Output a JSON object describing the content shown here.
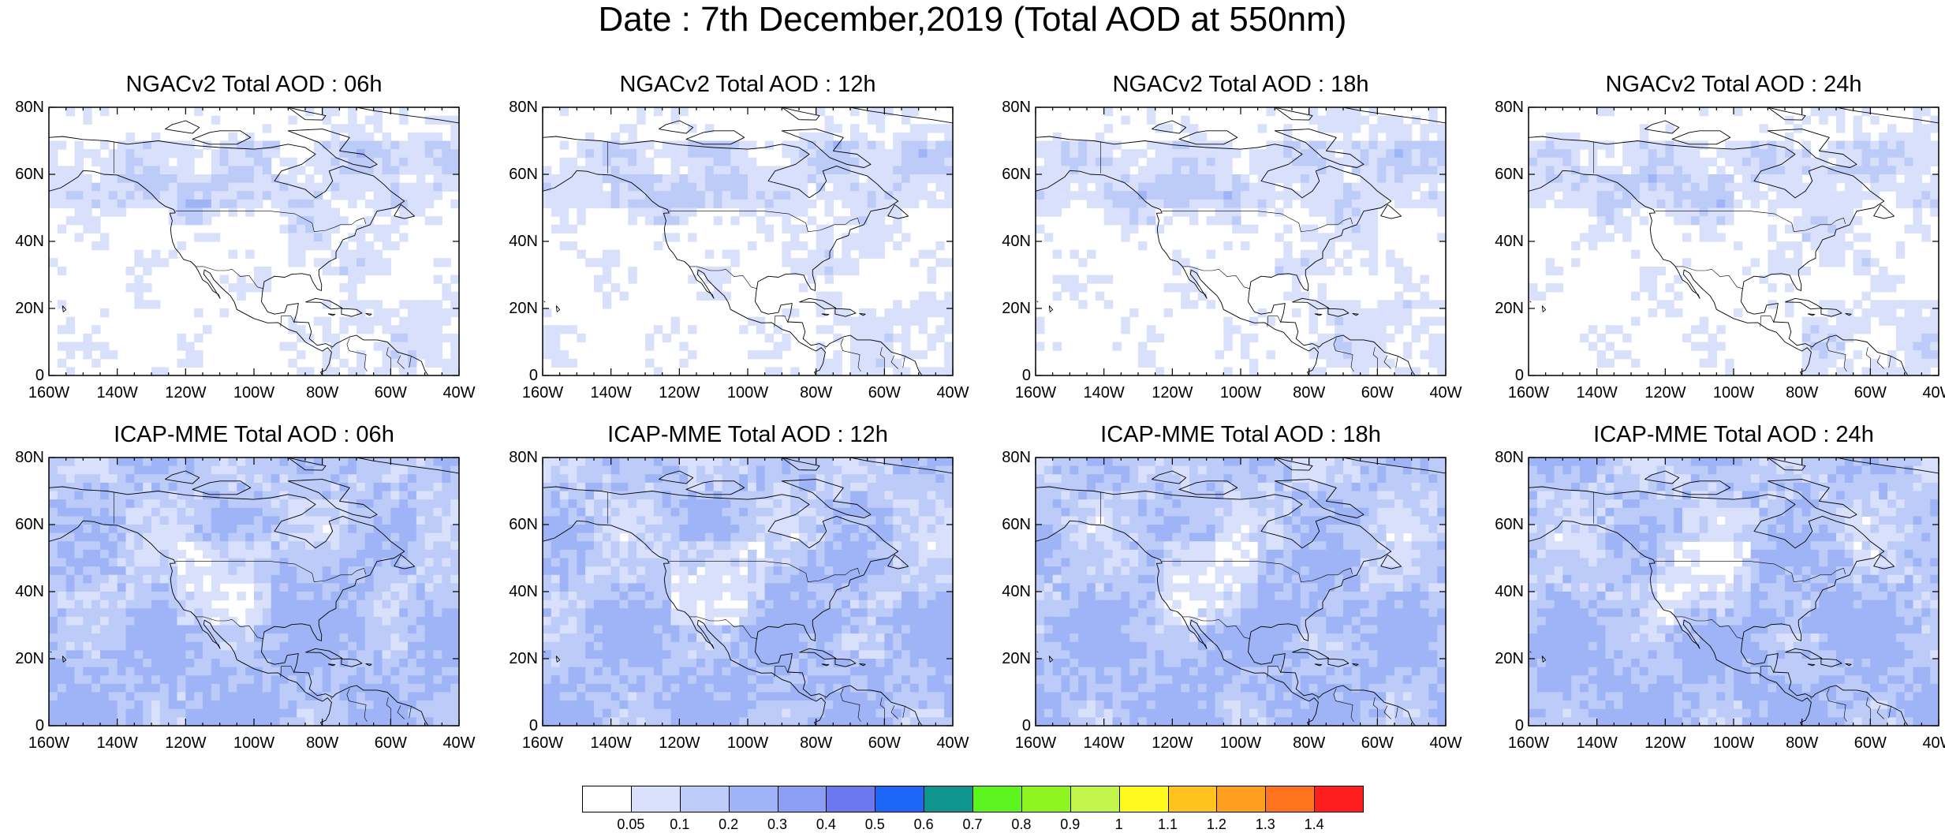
{
  "title": "Date : 7th December,2019 (Total AOD at 550nm)",
  "lat_labels": [
    "80N",
    "60N",
    "40N",
    "20N",
    "0"
  ],
  "lon_labels": [
    "160W",
    "140W",
    "120W",
    "100W",
    "80W",
    "60W",
    "40W"
  ],
  "panels": [
    {
      "title": "NGACv2 Total AOD : 06h",
      "model": "NGACv2",
      "hour": "06h"
    },
    {
      "title": "NGACv2 Total AOD : 12h",
      "model": "NGACv2",
      "hour": "12h"
    },
    {
      "title": "NGACv2 Total AOD : 18h",
      "model": "NGACv2",
      "hour": "18h"
    },
    {
      "title": "NGACv2 Total AOD : 24h",
      "model": "NGACv2",
      "hour": "24h"
    },
    {
      "title": "ICAP-MME Total AOD : 06h",
      "model": "ICAP-MME",
      "hour": "06h"
    },
    {
      "title": "ICAP-MME Total AOD : 12h",
      "model": "ICAP-MME",
      "hour": "12h"
    },
    {
      "title": "ICAP-MME Total AOD : 18h",
      "model": "ICAP-MME",
      "hour": "18h"
    },
    {
      "title": "ICAP-MME Total AOD : 24h",
      "model": "ICAP-MME",
      "hour": "24h"
    }
  ],
  "colorbar": {
    "labels": [
      "0.05",
      "0.1",
      "0.2",
      "0.3",
      "0.4",
      "0.5",
      "0.6",
      "0.7",
      "0.8",
      "0.9",
      "1",
      "1.1",
      "1.2",
      "1.3",
      "1.4"
    ],
    "colors": [
      "#ffffff",
      "#d8e0fb",
      "#bccbf8",
      "#9fb4f6",
      "#8a9ff2",
      "#6b78ee",
      "#1e66f5",
      "#10958e",
      "#5cf51e",
      "#8ef51e",
      "#c2f54a",
      "#fff91e",
      "#ffc21e",
      "#ff9f1e",
      "#ff731e",
      "#ff1e1e"
    ]
  }
}
